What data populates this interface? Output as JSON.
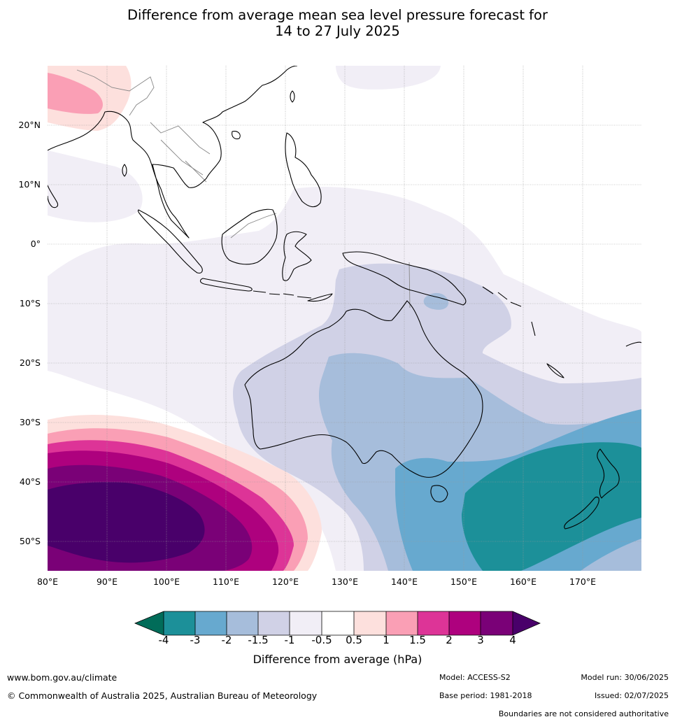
{
  "title": {
    "line1": "Difference from average mean sea level pressure forecast for",
    "line2": "14 to 27 July 2025"
  },
  "map": {
    "lon_range": [
      80,
      180
    ],
    "lat_range": [
      -55,
      30
    ],
    "lat_labels": [
      "20°N",
      "10°N",
      "0°",
      "10°S",
      "20°S",
      "30°S",
      "40°S",
      "50°S"
    ],
    "lat_values": [
      20,
      10,
      0,
      -10,
      -20,
      -30,
      -40,
      -50
    ],
    "lon_labels": [
      "80°E",
      "90°E",
      "100°E",
      "110°E",
      "120°E",
      "130°E",
      "140°E",
      "150°E",
      "160°E",
      "170°E"
    ],
    "lon_values": [
      80,
      90,
      100,
      110,
      120,
      130,
      140,
      150,
      160,
      170
    ],
    "grid": true,
    "coastline_color": "#000000",
    "border_color": "#888888"
  },
  "colorbar": {
    "tick_labels": [
      "-4",
      "-3",
      "-2",
      "-1.5",
      "-1",
      "-0.5",
      "0.5",
      "1",
      "1.5",
      "2",
      "3",
      "4"
    ],
    "colors": [
      "#016c59",
      "#1c9099",
      "#67a9cf",
      "#a6bddb",
      "#d0d1e6",
      "#f1eef6",
      "#ffffff",
      "#fde0dd",
      "#fa9fb5",
      "#dd3497",
      "#ae017e",
      "#7a0177",
      "#49006a"
    ],
    "label": "Difference from average (hPa)"
  },
  "footer": {
    "website": "www.bom.gov.au/climate",
    "copyright": "© Commonwealth of Australia 2025, Australian Bureau of Meteorology",
    "model": "Model: ACCESS-S2",
    "base_period": "Base period: 1981-2018",
    "model_run": "Model run: 30/06/2025",
    "issued": "Issued: 02/07/2025",
    "disclaimer": "Boundaries are not considered authoritative"
  }
}
